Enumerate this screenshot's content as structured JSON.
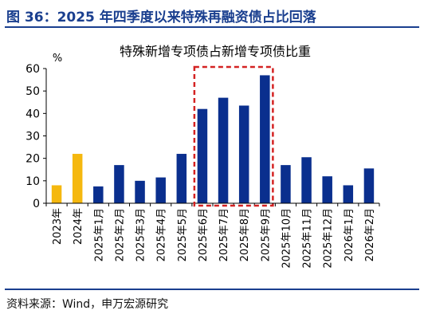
{
  "figure": {
    "title": "图 36：2025 年四季度以来特殊再融资债占比回落",
    "source": "资料来源：Wind，申万宏源研究"
  },
  "colors": {
    "brand": "#1a3f8f",
    "bar_primary": "#0a2f8e",
    "bar_highlight": "#f5b80f",
    "highlight_box": "#d42222",
    "axis": "#000000"
  },
  "chart_data": {
    "type": "bar",
    "title": "特殊新增专项债占新增专项债比重",
    "unit_label": "%",
    "ylim": [
      0,
      60
    ],
    "yticks": [
      0,
      10,
      20,
      30,
      40,
      50,
      60
    ],
    "grid": false,
    "legend": "none",
    "categories": [
      "2023年",
      "2024年",
      "2025年1月",
      "2025年2月",
      "2025年3月",
      "2025年4月",
      "2025年5月",
      "2025年6月",
      "2025年7月",
      "2025年8月",
      "2025年9月",
      "2025年10月",
      "2025年11月",
      "2025年12月",
      "2026年1月",
      "2026年2月"
    ],
    "values": [
      8,
      22,
      7.5,
      17,
      10,
      11.5,
      22,
      42,
      47,
      43.5,
      57,
      17,
      20.5,
      12,
      8,
      15.5
    ],
    "highlight_categories": [
      "2023年",
      "2024年"
    ],
    "annotation_box_range": [
      "2025年6月",
      "2025年9月"
    ]
  }
}
